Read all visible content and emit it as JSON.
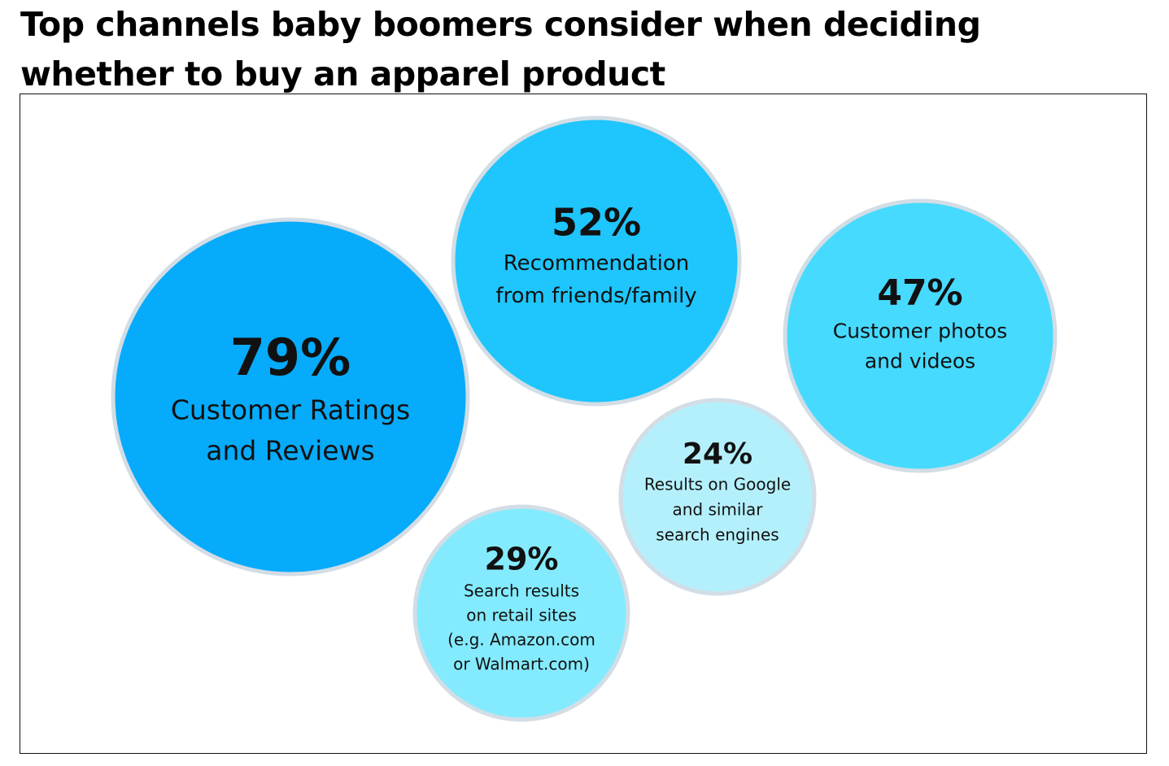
{
  "chart_data": {
    "type": "bubble",
    "title": "Top channels baby boomers consider when deciding whether to buy an apparel product",
    "title_lines": [
      "Top channels baby boomers consider when deciding",
      "whether to buy an apparel product"
    ],
    "unit": "%",
    "bubbles": [
      {
        "value": 79,
        "label_text": "79%",
        "label": "Customer Ratings and Reviews",
        "label_lines": [
          "Customer Ratings",
          "and Reviews"
        ],
        "color": "#06abfb"
      },
      {
        "value": 52,
        "label_text": "52%",
        "label": "Recommendation from friends/family",
        "label_lines": [
          "Recommendation",
          "from friends/family"
        ],
        "color": "#1ec6fd"
      },
      {
        "value": 47,
        "label_text": "47%",
        "label": "Customer photos and videos",
        "label_lines": [
          "Customer photos",
          "and videos"
        ],
        "color": "#46daff"
      },
      {
        "value": 29,
        "label_text": "29%",
        "label": "Search results on retail sites (e.g. Amazon.com or Walmart.com)",
        "label_lines": [
          "Search results",
          "on retail sites",
          "(e.g. Amazon.com",
          "or Walmart.com)"
        ],
        "color": "#84ebfe"
      },
      {
        "value": 24,
        "label_text": "24%",
        "label": "Results on Google and similar search engines",
        "label_lines": [
          "Results on Google",
          "and similar",
          "search engines"
        ],
        "color": "#b4f0fc"
      }
    ],
    "bubble_border_color": "#d3dde5"
  }
}
